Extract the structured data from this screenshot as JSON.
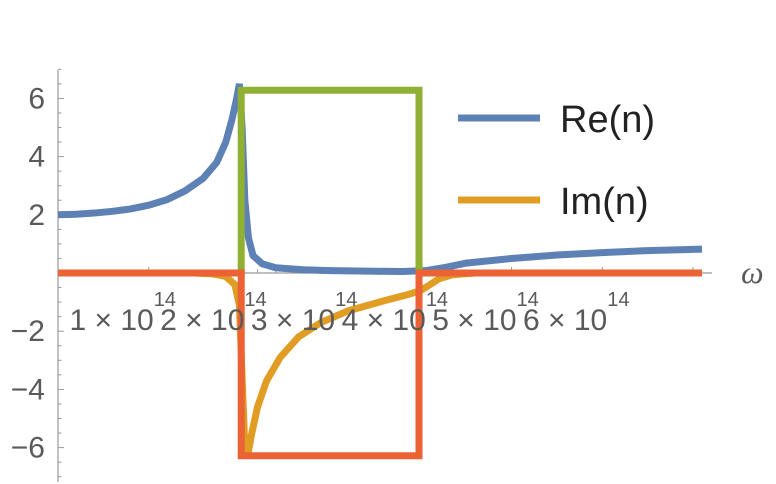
{
  "chart_data": {
    "type": "line",
    "xlabel": "ω",
    "ylabel": "",
    "xlim": [
      0,
      710000000000000.0
    ],
    "ylim": [
      -7,
      7
    ],
    "grid": false,
    "legend_placement": "top-right",
    "x_ticks": [
      {
        "value": 100000000000000.0,
        "mantissa": "1 × 10",
        "exp": "14"
      },
      {
        "value": 200000000000000.0,
        "mantissa": "2 × 10",
        "exp": "14"
      },
      {
        "value": 300000000000000.0,
        "mantissa": "3 × 10",
        "exp": "14"
      },
      {
        "value": 400000000000000.0,
        "mantissa": "4 × 10",
        "exp": "14"
      },
      {
        "value": 500000000000000.0,
        "mantissa": "5 × 10",
        "exp": "14"
      },
      {
        "value": 600000000000000.0,
        "mantissa": "6 × 10",
        "exp": "14"
      }
    ],
    "y_ticks": [
      {
        "value": 6,
        "label": "6"
      },
      {
        "value": 4,
        "label": "4"
      },
      {
        "value": 2,
        "label": "2"
      },
      {
        "value": -2,
        "label": "−2"
      },
      {
        "value": -4,
        "label": "−4"
      },
      {
        "value": -6,
        "label": "−6"
      }
    ],
    "series": [
      {
        "name": "Re(n)",
        "color": "#5e81b5",
        "in_legend": true,
        "points": [
          [
            0,
            2.0
          ],
          [
            20000000000000.0,
            2.02
          ],
          [
            40000000000000.0,
            2.06
          ],
          [
            60000000000000.0,
            2.12
          ],
          [
            80000000000000.0,
            2.2
          ],
          [
            100000000000000.0,
            2.33
          ],
          [
            120000000000000.0,
            2.52
          ],
          [
            140000000000000.0,
            2.82
          ],
          [
            160000000000000.0,
            3.25
          ],
          [
            175000000000000.0,
            3.8
          ],
          [
            185000000000000.0,
            4.5
          ],
          [
            192000000000000.0,
            5.3
          ],
          [
            197000000000000.0,
            6.0
          ],
          [
            200000000000000.0,
            6.5
          ],
          [
            203000000000000.0,
            5.0
          ],
          [
            206000000000000.0,
            2.5
          ],
          [
            210000000000000.0,
            1.2
          ],
          [
            215000000000000.0,
            0.6
          ],
          [
            225000000000000.0,
            0.32
          ],
          [
            240000000000000.0,
            0.18
          ],
          [
            270000000000000.0,
            0.11
          ],
          [
            300000000000000.0,
            0.08
          ],
          [
            350000000000000.0,
            0.06
          ],
          [
            380000000000000.0,
            0.05
          ],
          [
            405000000000000.0,
            0.08
          ],
          [
            425000000000000.0,
            0.18
          ],
          [
            450000000000000.0,
            0.34
          ],
          [
            500000000000000.0,
            0.5
          ],
          [
            550000000000000.0,
            0.62
          ],
          [
            600000000000000.0,
            0.7
          ],
          [
            650000000000000.0,
            0.77
          ],
          [
            710000000000000.0,
            0.82
          ]
        ]
      },
      {
        "name": "Im(n)",
        "color": "#e19c24",
        "in_legend": true,
        "points": [
          [
            0,
            0
          ],
          [
            150000000000000.0,
            0
          ],
          [
            170000000000000.0,
            -0.03
          ],
          [
            185000000000000.0,
            -0.12
          ],
          [
            195000000000000.0,
            -0.4
          ],
          [
            200000000000000.0,
            -1.1
          ],
          [
            203000000000000.0,
            -3.6
          ],
          [
            206000000000000.0,
            -6.0
          ],
          [
            209000000000000.0,
            -6.3
          ],
          [
            213000000000000.0,
            -5.6
          ],
          [
            220000000000000.0,
            -4.6
          ],
          [
            230000000000000.0,
            -3.7
          ],
          [
            245000000000000.0,
            -2.9
          ],
          [
            265000000000000.0,
            -2.2
          ],
          [
            290000000000000.0,
            -1.7
          ],
          [
            320000000000000.0,
            -1.3
          ],
          [
            360000000000000.0,
            -0.95
          ],
          [
            385000000000000.0,
            -0.75
          ],
          [
            400000000000000.0,
            -0.6
          ],
          [
            410000000000000.0,
            -0.4
          ],
          [
            420000000000000.0,
            -0.2
          ],
          [
            435000000000000.0,
            -0.06
          ],
          [
            460000000000000.0,
            0
          ],
          [
            710000000000000.0,
            0
          ]
        ]
      },
      {
        "name": "",
        "color": "#8fb032",
        "in_legend": false,
        "points": [
          [
            0,
            0
          ],
          [
            202000000000000.0,
            0
          ],
          [
            202000000000000.0,
            6.28
          ],
          [
            398000000000000.0,
            6.28
          ],
          [
            398000000000000.0,
            0
          ],
          [
            710000000000000.0,
            0
          ]
        ]
      },
      {
        "name": "",
        "color": "#eb6235",
        "in_legend": false,
        "points": [
          [
            0,
            0
          ],
          [
            202000000000000.0,
            0
          ],
          [
            202000000000000.0,
            -6.28
          ],
          [
            398000000000000.0,
            -6.28
          ],
          [
            398000000000000.0,
            0
          ],
          [
            710000000000000.0,
            0
          ]
        ]
      }
    ]
  }
}
